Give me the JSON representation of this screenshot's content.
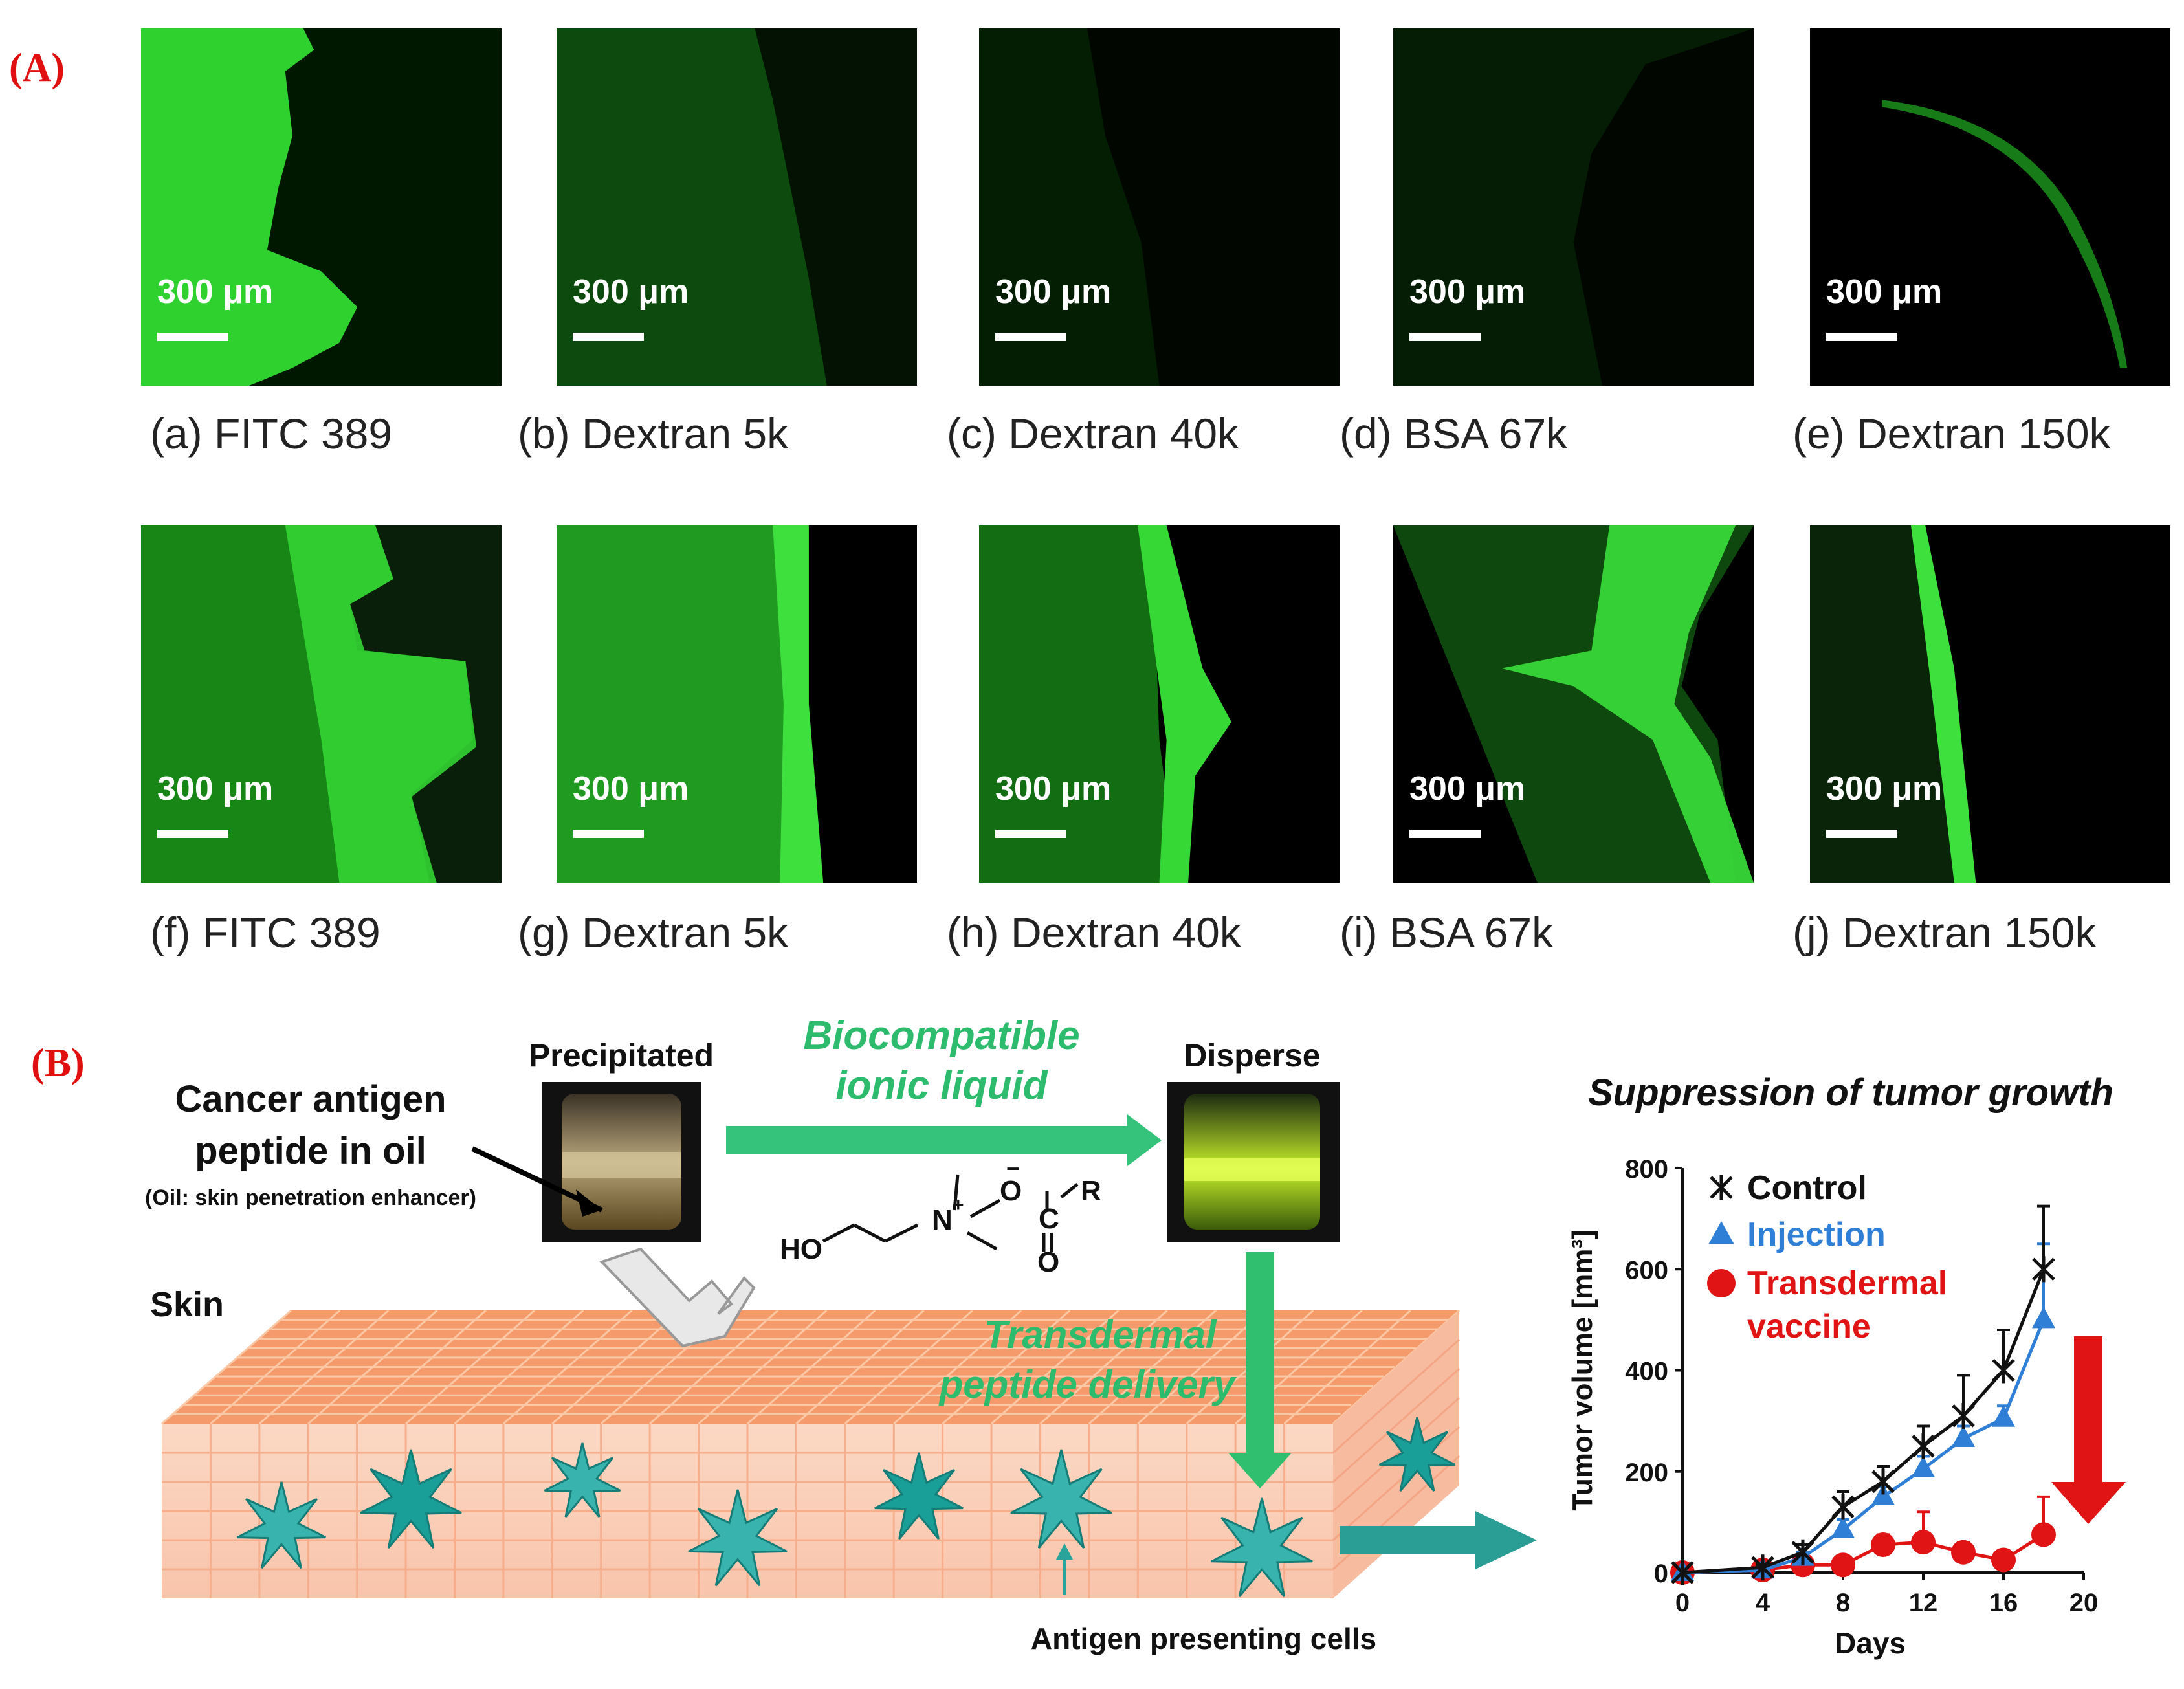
{
  "panel_a": {
    "label": "(A)",
    "scale_label": "300 μm",
    "images": [
      {
        "id": "a",
        "caption": "(a) FITC 389"
      },
      {
        "id": "b",
        "caption": "(b) Dextran 5k"
      },
      {
        "id": "c",
        "caption": "(c) Dextran 40k"
      },
      {
        "id": "d",
        "caption": "(d) BSA 67k"
      },
      {
        "id": "e",
        "caption": "(e) Dextran 150k"
      },
      {
        "id": "f",
        "caption": "(f) FITC 389"
      },
      {
        "id": "g",
        "caption": "(g) Dextran 5k"
      },
      {
        "id": "h",
        "caption": "(h) Dextran 40k"
      },
      {
        "id": "i",
        "caption": "(i) BSA 67k"
      },
      {
        "id": "j",
        "caption": "(j) Dextran 150k"
      }
    ]
  },
  "panel_b": {
    "label": "(B)",
    "precipitated": "Precipitated",
    "disperse": "Disperse",
    "antigen_line1": "Cancer antigen",
    "antigen_line2": "peptide in oil",
    "oil_note": "(Oil: skin penetration enhancer)",
    "ionic_line1": "Biocompatible",
    "ionic_line2": "ionic liquid",
    "skin": "Skin",
    "transdermal_line1": "Transdermal",
    "transdermal_line2": "peptide delivery",
    "apc": "Antigen presenting cells",
    "chem": {
      "ho": "HO",
      "n_plus": "N+",
      "o_minus": "O−",
      "c": "C",
      "o": "O",
      "r": "R"
    }
  },
  "chart_title": "Suppression of tumor growth",
  "chart_data": {
    "type": "line",
    "title": "",
    "xlabel": "Days",
    "ylabel": "Tumor volume [mm³]",
    "xlim": [
      0,
      20
    ],
    "ylim": [
      0,
      800
    ],
    "xticks": [
      0,
      4,
      8,
      12,
      16,
      20
    ],
    "yticks": [
      0,
      200,
      400,
      600,
      800
    ],
    "legend_position": "top-left",
    "series": [
      {
        "name": "Control",
        "color": "#111111",
        "marker": "asterisk",
        "x": [
          0,
          4,
          6,
          8,
          10,
          12,
          14,
          16,
          18
        ],
        "y": [
          0,
          10,
          40,
          130,
          180,
          250,
          310,
          400,
          600
        ],
        "err": [
          0,
          5,
          15,
          30,
          30,
          40,
          80,
          80,
          125
        ]
      },
      {
        "name": "Injection",
        "color": "#2f7fd6",
        "marker": "triangle",
        "x": [
          0,
          4,
          6,
          8,
          10,
          12,
          14,
          16,
          18
        ],
        "y": [
          0,
          5,
          30,
          85,
          150,
          205,
          265,
          305,
          500
        ],
        "err": [
          0,
          5,
          10,
          20,
          20,
          25,
          25,
          25,
          150
        ]
      },
      {
        "name": "Transdermal vaccine",
        "color": "#e01414",
        "marker": "circle",
        "x": [
          0,
          4,
          6,
          8,
          10,
          12,
          14,
          16,
          18
        ],
        "y": [
          0,
          5,
          15,
          15,
          55,
          60,
          40,
          25,
          75
        ],
        "err": [
          0,
          5,
          5,
          5,
          20,
          60,
          20,
          5,
          75
        ]
      }
    ],
    "legend_labels": {
      "control": "Control",
      "injection": "Injection",
      "transdermal_1": "Transdermal",
      "transdermal_2": "vaccine"
    }
  }
}
